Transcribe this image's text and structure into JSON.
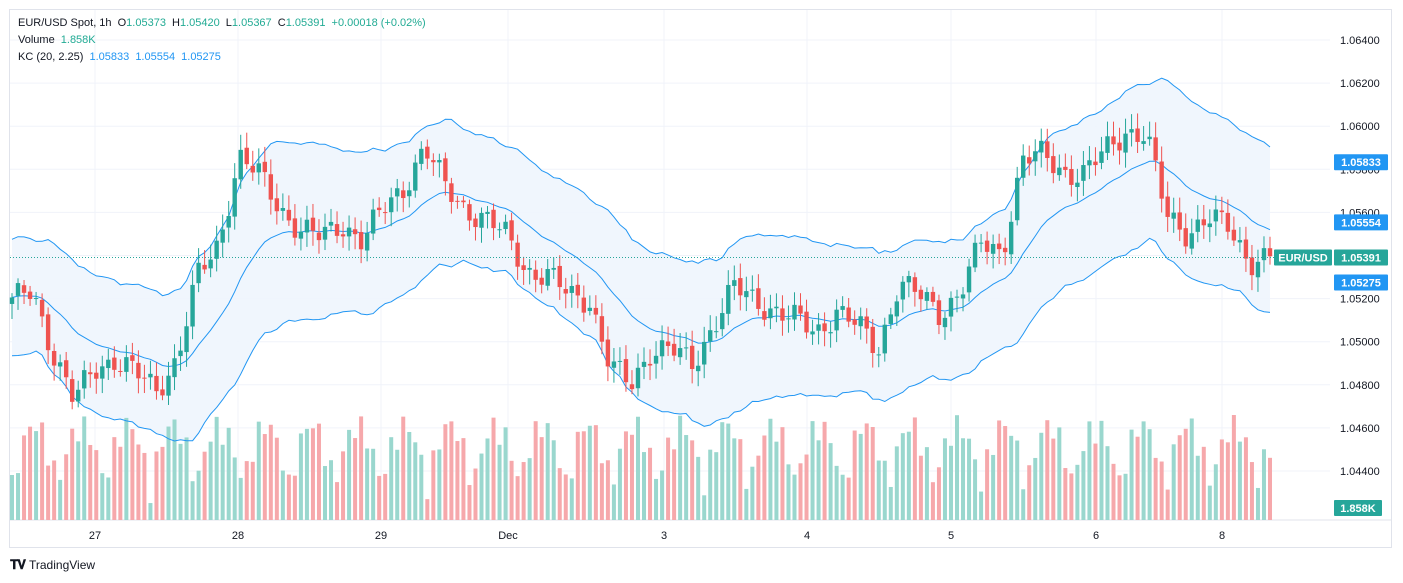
{
  "legend": {
    "symbol": "EUR/USD Spot, 1h",
    "open_label": "O",
    "open": "1.05373",
    "high_label": "H",
    "high": "1.05420",
    "low_label": "L",
    "low": "1.05367",
    "close_label": "C",
    "close": "1.05391",
    "change": "+0.00018 (+0.02%)",
    "volume_label": "Volume",
    "volume": "1.858K",
    "kc_label": "KC (20, 2.25)",
    "kc_upper": "1.05833",
    "kc_middle": "1.05554",
    "kc_lower": "1.05275"
  },
  "brand": "TradingView",
  "colors": {
    "up": "#26a69a",
    "down": "#ef5350",
    "up_vol": "#9ad7ce",
    "down_vol": "#f6a8ab",
    "kc_line": "#2196f3",
    "kc_fill": "#eef5fd",
    "grid": "#f0f3fa",
    "axis_text": "#131722"
  },
  "chart_data": {
    "type": "candlestick",
    "title": "EUR/USD Spot, 1h",
    "ylim": [
      1.0425,
      1.065
    ],
    "y_ticks": [
      "1.06400",
      "1.06200",
      "1.06000",
      "1.05800",
      "1.05600",
      "1.05400",
      "1.05200",
      "1.05000",
      "1.04800",
      "1.04600",
      "1.04400"
    ],
    "x_ticks": [
      "27",
      "28",
      "29",
      "Dec",
      "3",
      "4",
      "5",
      "6",
      "8"
    ],
    "last_price": "1.05391",
    "symbol_label": "EUR/USD",
    "kc_labels": {
      "upper": "1.05833",
      "middle": "1.05554",
      "lower": "1.05275"
    },
    "volume_label": "1.858K",
    "legend": "top-left",
    "grid": true,
    "series_anchor_closes": [
      1.0518,
      1.0524,
      1.0495,
      1.0472,
      1.0488,
      1.0492,
      1.0485,
      1.0478,
      1.0492,
      1.053,
      1.0545,
      1.0586,
      1.0577,
      1.0562,
      1.0552,
      1.0548,
      1.0555,
      1.0547,
      1.0561,
      1.0572,
      1.059,
      1.0572,
      1.0562,
      1.0556,
      1.0549,
      1.0533,
      1.053,
      1.0522,
      1.052,
      1.0488,
      1.048,
      1.0497,
      1.0496,
      1.0489,
      1.0508,
      1.0525,
      1.0519,
      1.0515,
      1.051,
      1.0504,
      1.0515,
      1.0507,
      1.0496,
      1.0528,
      1.0521,
      1.0513,
      1.0524,
      1.0545,
      1.0541,
      1.0585,
      1.0586,
      1.0579,
      1.0578,
      1.0588,
      1.0598,
      1.0596,
      1.0558,
      1.0551,
      1.0557,
      1.0553,
      1.0538,
      1.0539
    ]
  }
}
